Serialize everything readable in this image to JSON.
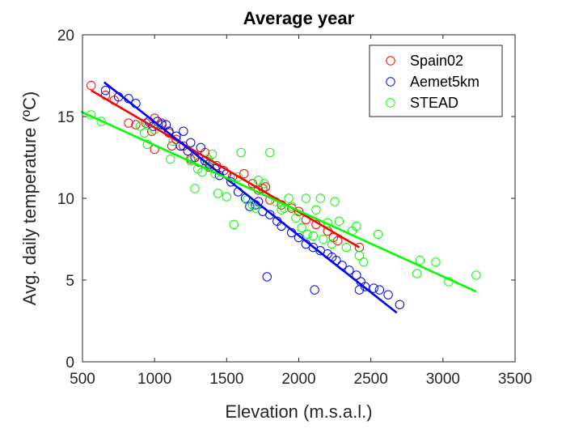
{
  "chart_data": {
    "type": "scatter",
    "title": "Average year",
    "xlabel": "Elevation (m.s.a.l.)",
    "ylabel": "Avg. daily temperature (ºC)",
    "xlim": [
      500,
      3500
    ],
    "ylim": [
      0,
      20
    ],
    "x_ticks": [
      500,
      1000,
      1500,
      2000,
      2500,
      3000,
      3500
    ],
    "y_ticks": [
      0,
      5,
      10,
      15,
      20
    ],
    "x_tick_labels": [
      "500",
      "1000",
      "1500",
      "2000",
      "2500",
      "3000",
      "3500"
    ],
    "y_tick_labels": [
      "0",
      "5",
      "10",
      "15",
      "20"
    ],
    "grid": false,
    "legend_position": "top-right",
    "series": [
      {
        "name": "Spain02",
        "color": "#ff0000",
        "marker": "open-circle",
        "fit_line": {
          "x": [
            560,
            2420
          ],
          "y": [
            16.6,
            7.0
          ]
        },
        "points": [
          [
            560,
            16.9
          ],
          [
            660,
            16.3
          ],
          [
            720,
            16.0
          ],
          [
            820,
            14.6
          ],
          [
            870,
            14.5
          ],
          [
            940,
            14.6
          ],
          [
            980,
            14.1
          ],
          [
            1000,
            14.9
          ],
          [
            1000,
            13.0
          ],
          [
            1050,
            14.6
          ],
          [
            1100,
            14.0
          ],
          [
            1120,
            13.2
          ],
          [
            1150,
            13.6
          ],
          [
            1200,
            13.2
          ],
          [
            1250,
            12.4
          ],
          [
            1310,
            12.2
          ],
          [
            1350,
            12.8
          ],
          [
            1380,
            11.9
          ],
          [
            1430,
            12.0
          ],
          [
            1480,
            11.7
          ],
          [
            1540,
            11.3
          ],
          [
            1620,
            11.5
          ],
          [
            1680,
            10.9
          ],
          [
            1720,
            10.5
          ],
          [
            1750,
            10.6
          ],
          [
            1770,
            10.7
          ],
          [
            1800,
            9.9
          ],
          [
            1880,
            9.6
          ],
          [
            1950,
            9.4
          ],
          [
            2000,
            9.2
          ],
          [
            2050,
            8.7
          ],
          [
            2120,
            8.4
          ],
          [
            2200,
            8.0
          ],
          [
            2240,
            7.6
          ],
          [
            2270,
            7.4
          ],
          [
            2420,
            7.0
          ]
        ]
      },
      {
        "name": "Aemet5km",
        "color": "#0000ff",
        "marker": "open-circle",
        "fit_line": {
          "x": [
            650,
            2680
          ],
          "y": [
            17.1,
            3.0
          ]
        },
        "points": [
          [
            660,
            16.6
          ],
          [
            750,
            16.2
          ],
          [
            820,
            16.1
          ],
          [
            870,
            15.8
          ],
          [
            960,
            14.7
          ],
          [
            990,
            14.4
          ],
          [
            1020,
            14.7
          ],
          [
            1050,
            14.5
          ],
          [
            1080,
            14.5
          ],
          [
            1100,
            14.1
          ],
          [
            1150,
            13.8
          ],
          [
            1180,
            13.2
          ],
          [
            1200,
            14.1
          ],
          [
            1230,
            12.9
          ],
          [
            1250,
            13.4
          ],
          [
            1280,
            12.5
          ],
          [
            1320,
            13.1
          ],
          [
            1350,
            12.3
          ],
          [
            1380,
            12.1
          ],
          [
            1420,
            11.8
          ],
          [
            1450,
            11.4
          ],
          [
            1500,
            11.5
          ],
          [
            1530,
            11.0
          ],
          [
            1580,
            10.4
          ],
          [
            1630,
            10.0
          ],
          [
            1660,
            9.5
          ],
          [
            1700,
            9.6
          ],
          [
            1720,
            9.8
          ],
          [
            1750,
            9.2
          ],
          [
            1800,
            9.0
          ],
          [
            1850,
            8.6
          ],
          [
            1880,
            8.3
          ],
          [
            1950,
            7.9
          ],
          [
            2000,
            7.6
          ],
          [
            2050,
            7.2
          ],
          [
            2100,
            7.0
          ],
          [
            2150,
            6.8
          ],
          [
            2200,
            6.6
          ],
          [
            2230,
            6.4
          ],
          [
            2260,
            6.2
          ],
          [
            2300,
            5.9
          ],
          [
            2350,
            5.6
          ],
          [
            2400,
            5.3
          ],
          [
            2430,
            4.9
          ],
          [
            2460,
            4.6
          ],
          [
            2520,
            4.5
          ],
          [
            2560,
            4.4
          ],
          [
            2620,
            4.1
          ],
          [
            2700,
            3.5
          ],
          [
            1780,
            5.2
          ],
          [
            2110,
            4.4
          ],
          [
            2420,
            4.4
          ]
        ]
      },
      {
        "name": "STEAD",
        "color": "#00ff00",
        "marker": "open-circle",
        "fit_line": {
          "x": [
            490,
            3230
          ],
          "y": [
            15.3,
            4.3
          ]
        },
        "points": [
          [
            560,
            15.1
          ],
          [
            630,
            14.7
          ],
          [
            900,
            14.4
          ],
          [
            930,
            14.0
          ],
          [
            1000,
            14.2
          ],
          [
            950,
            13.3
          ],
          [
            1110,
            12.4
          ],
          [
            1130,
            13.5
          ],
          [
            1250,
            12.3
          ],
          [
            1280,
            10.6
          ],
          [
            1300,
            11.8
          ],
          [
            1330,
            11.6
          ],
          [
            1370,
            12.4
          ],
          [
            1380,
            12.2
          ],
          [
            1400,
            12.7
          ],
          [
            1420,
            11.5
          ],
          [
            1440,
            10.3
          ],
          [
            1500,
            10.1
          ],
          [
            1550,
            8.4
          ],
          [
            1580,
            11.3
          ],
          [
            1600,
            12.8
          ],
          [
            1640,
            9.9
          ],
          [
            1680,
            9.6
          ],
          [
            1700,
            9.4
          ],
          [
            1720,
            11.1
          ],
          [
            1760,
            10.9
          ],
          [
            1800,
            12.8
          ],
          [
            1840,
            9.8
          ],
          [
            1880,
            9.3
          ],
          [
            1900,
            9.4
          ],
          [
            1930,
            10.0
          ],
          [
            1950,
            9.5
          ],
          [
            1980,
            8.8
          ],
          [
            2020,
            8.2
          ],
          [
            2050,
            10.0
          ],
          [
            2060,
            7.8
          ],
          [
            2100,
            7.7
          ],
          [
            2120,
            9.3
          ],
          [
            2150,
            10.0
          ],
          [
            2170,
            7.5
          ],
          [
            2200,
            8.5
          ],
          [
            2230,
            7.2
          ],
          [
            2250,
            9.8
          ],
          [
            2280,
            8.6
          ],
          [
            2330,
            7.0
          ],
          [
            2370,
            8.0
          ],
          [
            2400,
            8.3
          ],
          [
            2420,
            6.5
          ],
          [
            2450,
            6.1
          ],
          [
            2550,
            7.8
          ],
          [
            2820,
            5.4
          ],
          [
            2840,
            6.2
          ],
          [
            2950,
            6.1
          ],
          [
            3040,
            4.9
          ],
          [
            3230,
            5.3
          ]
        ]
      }
    ]
  }
}
